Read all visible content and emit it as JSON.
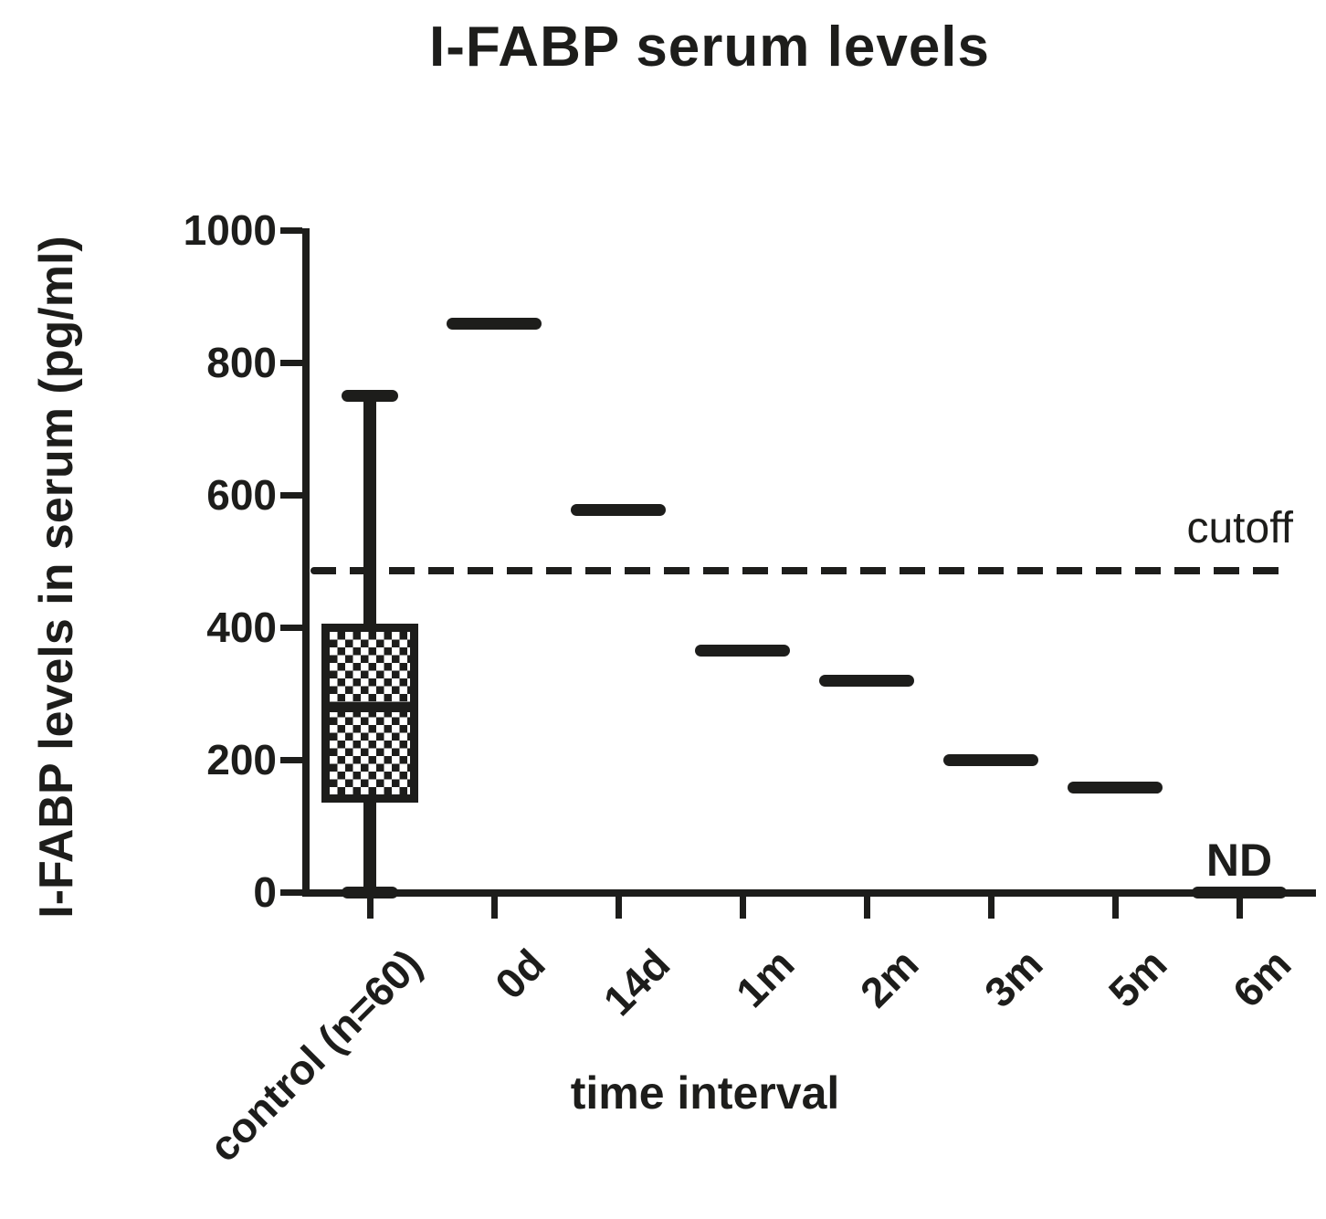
{
  "title": "I-FABP serum levels",
  "colors": {
    "ink": "#1d1d1b",
    "background": "#ffffff"
  },
  "y_axis": {
    "label": "I-FABP levels in serum (pg/ml)"
  },
  "x_axis": {
    "label": "time interval"
  },
  "chart_data": {
    "type": "box-and-median",
    "title": "I-FABP serum levels",
    "xlabel": "time interval",
    "ylabel": "I-FABP levels in serum (pg/ml)",
    "ylim": [
      0,
      1000
    ],
    "yticks": [
      0,
      200,
      400,
      600,
      800,
      1000
    ],
    "grid": false,
    "legend": false,
    "categories": [
      "control (n=60)",
      "0d",
      "14d",
      "1m",
      "2m",
      "3m",
      "5m",
      "6m"
    ],
    "box": {
      "category": "control (n=60)",
      "whisker_min": 0,
      "q1": 135,
      "median": 280,
      "q3": 405,
      "whisker_max": 750,
      "fill": "checkerboard-hatch"
    },
    "medians": [
      {
        "category": "0d",
        "value": 860
      },
      {
        "category": "14d",
        "value": 578
      },
      {
        "category": "1m",
        "value": 365
      },
      {
        "category": "2m",
        "value": 320
      },
      {
        "category": "3m",
        "value": 200
      },
      {
        "category": "5m",
        "value": 158
      },
      {
        "category": "6m",
        "value": 0,
        "annotation": "ND"
      }
    ],
    "cutoff_line": {
      "label": "cutoff",
      "value": 485,
      "style": "dashed"
    }
  }
}
